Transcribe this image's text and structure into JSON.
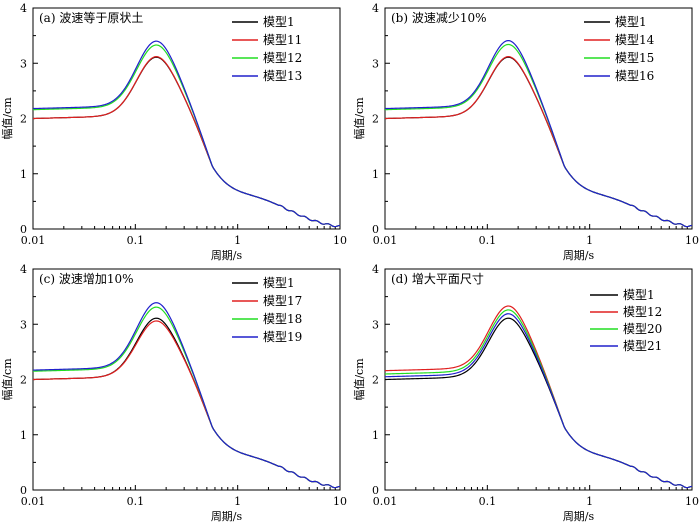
{
  "chart_data": [
    {
      "type": "line",
      "title": "(a) 波速等于原状土",
      "xlabel": "周期/s",
      "ylabel": "幅值/cm",
      "xscale": "log",
      "xlim": [
        0.01,
        10
      ],
      "ylim": [
        0,
        4
      ],
      "xticks": [
        "0.01",
        "0.1",
        "1",
        "10"
      ],
      "yticks": [
        "0",
        "1",
        "2",
        "3",
        "4"
      ],
      "legend_position": "top-right",
      "series": [
        {
          "name": "模型1",
          "color": "#000000",
          "base": 2.0,
          "peak": 3.05
        },
        {
          "name": "模型11",
          "color": "#e02020",
          "base": 2.0,
          "peak": 3.06
        },
        {
          "name": "模型12",
          "color": "#22dd22",
          "base": 2.16,
          "peak": 3.27
        },
        {
          "name": "模型13",
          "color": "#2020cc",
          "base": 2.18,
          "peak": 3.34
        }
      ]
    },
    {
      "type": "line",
      "title": "(b) 波速减少10%",
      "xlabel": "周期/s",
      "ylabel": "幅值/cm",
      "xscale": "log",
      "xlim": [
        0.01,
        10
      ],
      "ylim": [
        0,
        4
      ],
      "xticks": [
        "0.01",
        "0.1",
        "1",
        "10"
      ],
      "yticks": [
        "0",
        "1",
        "2",
        "3",
        "4"
      ],
      "legend_position": "top-right",
      "series": [
        {
          "name": "模型1",
          "color": "#000000",
          "base": 2.0,
          "peak": 3.05
        },
        {
          "name": "模型14",
          "color": "#e02020",
          "base": 2.0,
          "peak": 3.06
        },
        {
          "name": "模型15",
          "color": "#22dd22",
          "base": 2.16,
          "peak": 3.28
        },
        {
          "name": "模型16",
          "color": "#2020cc",
          "base": 2.18,
          "peak": 3.35
        }
      ]
    },
    {
      "type": "line",
      "title": "(c) 波速增加10%",
      "xlabel": "周期/s",
      "ylabel": "幅值/cm",
      "xscale": "log",
      "xlim": [
        0.01,
        10
      ],
      "ylim": [
        0,
        4
      ],
      "xticks": [
        "0.01",
        "0.1",
        "1",
        "10"
      ],
      "yticks": [
        "0",
        "1",
        "2",
        "3",
        "4"
      ],
      "legend_position": "top-right",
      "series": [
        {
          "name": "模型1",
          "color": "#000000",
          "base": 2.0,
          "peak": 3.05
        },
        {
          "name": "模型17",
          "color": "#e02020",
          "base": 2.0,
          "peak": 3.0
        },
        {
          "name": "模型18",
          "color": "#22dd22",
          "base": 2.15,
          "peak": 3.25
        },
        {
          "name": "模型19",
          "color": "#2020cc",
          "base": 2.17,
          "peak": 3.33
        }
      ]
    },
    {
      "type": "line",
      "title": "(d) 增大平面尺寸",
      "xlabel": "周期/s",
      "ylabel": "幅值/cm",
      "xscale": "log",
      "xlim": [
        0.01,
        10
      ],
      "ylim": [
        0,
        4
      ],
      "xticks": [
        "0.01",
        "0.1",
        "1",
        "10"
      ],
      "yticks": [
        "0",
        "1",
        "2",
        "3",
        "4"
      ],
      "legend_position": "top-right",
      "series": [
        {
          "name": "模型1",
          "color": "#000000",
          "base": 2.0,
          "peak": 3.05
        },
        {
          "name": "模型12",
          "color": "#e02020",
          "base": 2.16,
          "peak": 3.27
        },
        {
          "name": "模型20",
          "color": "#22dd22",
          "base": 2.1,
          "peak": 3.2
        },
        {
          "name": "模型21",
          "color": "#2020cc",
          "base": 2.05,
          "peak": 3.13
        }
      ]
    }
  ]
}
